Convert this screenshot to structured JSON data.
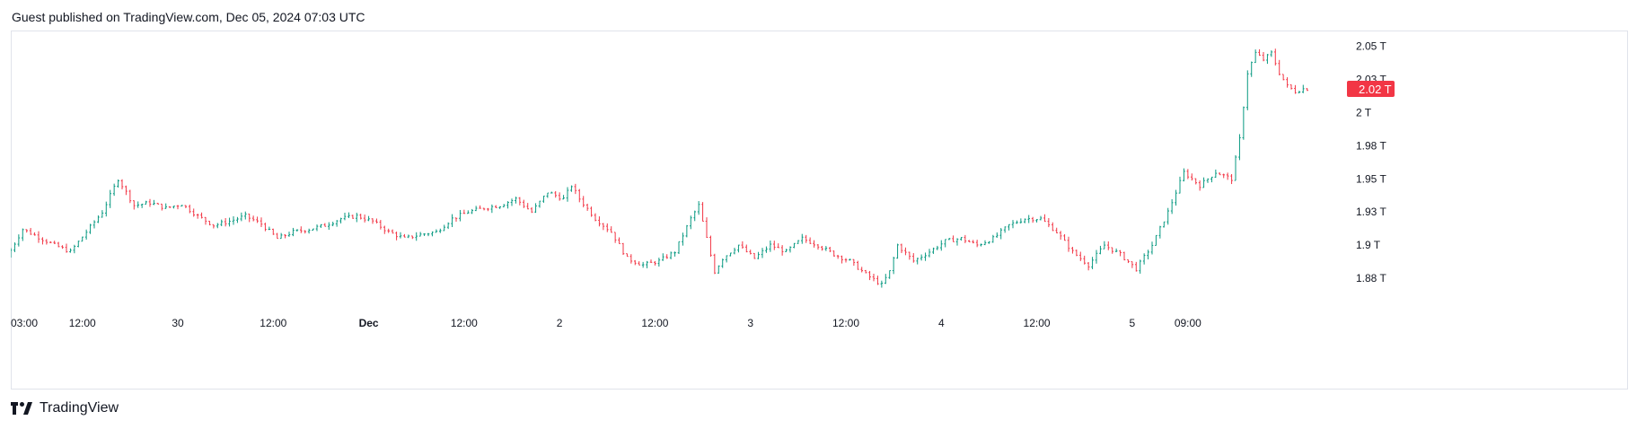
{
  "header": {
    "text": "Guest published on TradingView.com, Dec 05, 2024 07:03 UTC"
  },
  "footer": {
    "brand": "TradingView"
  },
  "colors": {
    "up": "#089981",
    "down": "#f23645",
    "price_badge": "#f23645",
    "border": "#e0e3eb"
  },
  "chart_data": {
    "type": "ohlc",
    "price_unit": "T",
    "y_ticks": [
      {
        "value": 2.05,
        "label": "2.05 T"
      },
      {
        "value": 2.025,
        "label": "2.03 T"
      },
      {
        "value": 2.0,
        "label": "2 T"
      },
      {
        "value": 1.975,
        "label": "1.98 T"
      },
      {
        "value": 1.95,
        "label": "1.95 T"
      },
      {
        "value": 1.925,
        "label": "1.93 T"
      },
      {
        "value": 1.9,
        "label": "1.9 T"
      },
      {
        "value": 1.875,
        "label": "1.88 T"
      }
    ],
    "y_range": [
      1.852,
      2.062
    ],
    "x_range_hours": [
      0,
      168
    ],
    "x_ticks": [
      {
        "label": "03:00",
        "hour": 0,
        "bold": false
      },
      {
        "label": "12:00",
        "hour": 9,
        "bold": false
      },
      {
        "label": "30",
        "hour": 21,
        "bold": false
      },
      {
        "label": "12:00",
        "hour": 33,
        "bold": false
      },
      {
        "label": "Dec",
        "hour": 45,
        "bold": true
      },
      {
        "label": "12:00",
        "hour": 57,
        "bold": false
      },
      {
        "label": "2",
        "hour": 69,
        "bold": false
      },
      {
        "label": "12:00",
        "hour": 81,
        "bold": false
      },
      {
        "label": "3",
        "hour": 93,
        "bold": false
      },
      {
        "label": "12:00",
        "hour": 105,
        "bold": false
      },
      {
        "label": "4",
        "hour": 117,
        "bold": false
      },
      {
        "label": "12:00",
        "hour": 129,
        "bold": false
      },
      {
        "label": "5",
        "hour": 141,
        "bold": false
      },
      {
        "label": "09:00",
        "hour": 148,
        "bold": false
      }
    ],
    "last_price": {
      "value": 2.018,
      "label": "2.02 T"
    },
    "path": [
      [
        0,
        1.891
      ],
      [
        2,
        1.912
      ],
      [
        4,
        1.906
      ],
      [
        6,
        1.9
      ],
      [
        8,
        1.895
      ],
      [
        10,
        1.91
      ],
      [
        12,
        1.925
      ],
      [
        14,
        1.95
      ],
      [
        16,
        1.93
      ],
      [
        18,
        1.932
      ],
      [
        20,
        1.928
      ],
      [
        22,
        1.931
      ],
      [
        24,
        1.922
      ],
      [
        26,
        1.915
      ],
      [
        28,
        1.918
      ],
      [
        30,
        1.922
      ],
      [
        32,
        1.916
      ],
      [
        34,
        1.905
      ],
      [
        36,
        1.91
      ],
      [
        38,
        1.912
      ],
      [
        40,
        1.915
      ],
      [
        42,
        1.92
      ],
      [
        44,
        1.922
      ],
      [
        46,
        1.918
      ],
      [
        48,
        1.91
      ],
      [
        50,
        1.905
      ],
      [
        52,
        1.908
      ],
      [
        54,
        1.91
      ],
      [
        56,
        1.92
      ],
      [
        58,
        1.925
      ],
      [
        60,
        1.928
      ],
      [
        62,
        1.93
      ],
      [
        64,
        1.935
      ],
      [
        66,
        1.925
      ],
      [
        68,
        1.94
      ],
      [
        70,
        1.935
      ],
      [
        71,
        1.945
      ],
      [
        72,
        1.935
      ],
      [
        74,
        1.92
      ],
      [
        76,
        1.91
      ],
      [
        78,
        1.89
      ],
      [
        80,
        1.885
      ],
      [
        82,
        1.888
      ],
      [
        84,
        1.895
      ],
      [
        86,
        1.92
      ],
      [
        87,
        1.93
      ],
      [
        88,
        1.905
      ],
      [
        89,
        1.88
      ],
      [
        90,
        1.89
      ],
      [
        92,
        1.9
      ],
      [
        94,
        1.89
      ],
      [
        96,
        1.9
      ],
      [
        98,
        1.895
      ],
      [
        100,
        1.905
      ],
      [
        102,
        1.9
      ],
      [
        104,
        1.893
      ],
      [
        106,
        1.888
      ],
      [
        108,
        1.878
      ],
      [
        110,
        1.87
      ],
      [
        111,
        1.88
      ],
      [
        112,
        1.9
      ],
      [
        114,
        1.888
      ],
      [
        116,
        1.895
      ],
      [
        118,
        1.903
      ],
      [
        120,
        1.905
      ],
      [
        122,
        1.9
      ],
      [
        124,
        1.905
      ],
      [
        126,
        1.915
      ],
      [
        128,
        1.92
      ],
      [
        130,
        1.92
      ],
      [
        132,
        1.91
      ],
      [
        134,
        1.895
      ],
      [
        136,
        1.885
      ],
      [
        138,
        1.9
      ],
      [
        140,
        1.893
      ],
      [
        142,
        1.882
      ],
      [
        144,
        1.9
      ],
      [
        146,
        1.925
      ],
      [
        148,
        1.955
      ],
      [
        150,
        1.945
      ],
      [
        152,
        1.955
      ],
      [
        154,
        1.95
      ],
      [
        155,
        1.98
      ],
      [
        156,
        2.03
      ],
      [
        157,
        2.045
      ],
      [
        158,
        2.04
      ],
      [
        159,
        2.045
      ],
      [
        160,
        2.03
      ],
      [
        161,
        2.02
      ],
      [
        162,
        2.016
      ],
      [
        163,
        2.018
      ]
    ]
  }
}
